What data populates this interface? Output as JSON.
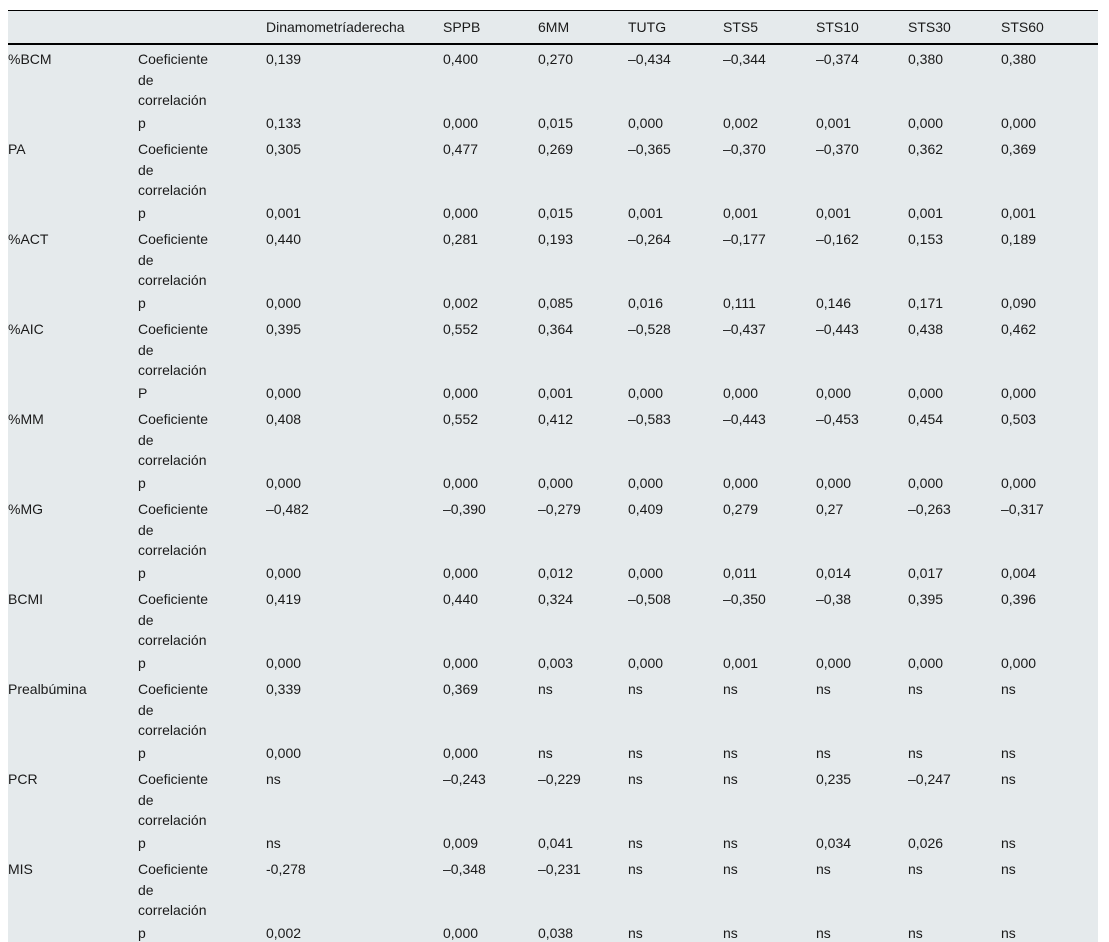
{
  "table": {
    "coef_label": "Coeficiente\nde\ncorrelación",
    "columns": [
      "",
      "",
      "Dinamometríaderecha",
      "SPPB",
      "6MM",
      "TUTG",
      "STS5",
      "STS10",
      "STS30",
      "STS60"
    ],
    "rows": [
      {
        "label": "%BCM",
        "coef": [
          "0,139",
          "0,400",
          "0,270",
          "–0,434",
          "–0,344",
          "–0,374",
          "0,380",
          "0,380"
        ],
        "p_label": "p",
        "p": [
          "0,133",
          "0,000",
          "0,015",
          "0,000",
          "0,002",
          "0,001",
          "0,000",
          "0,000"
        ]
      },
      {
        "label": "PA",
        "coef": [
          "0,305",
          "0,477",
          "0,269",
          "–0,365",
          "–0,370",
          "–0,370",
          "0,362",
          "0,369"
        ],
        "p_label": "p",
        "p": [
          "0,001",
          "0,000",
          "0,015",
          "0,001",
          "0,001",
          "0,001",
          "0,001",
          "0,001"
        ]
      },
      {
        "label": "%ACT",
        "coef": [
          "0,440",
          "0,281",
          "0,193",
          "–0,264",
          "–0,177",
          "–0,162",
          "0,153",
          "0,189"
        ],
        "p_label": "p",
        "p": [
          "0,000",
          "0,002",
          "0,085",
          "0,016",
          "0,111",
          "0,146",
          "0,171",
          "0,090"
        ]
      },
      {
        "label": "%AIC",
        "coef": [
          "0,395",
          "0,552",
          "0,364",
          "–0,528",
          "–0,437",
          "–0,443",
          "0,438",
          "0,462"
        ],
        "p_label": "P",
        "p": [
          "0,000",
          "0,000",
          "0,001",
          "0,000",
          "0,000",
          "0,000",
          "0,000",
          "0,000"
        ]
      },
      {
        "label": "%MM",
        "coef": [
          "0,408",
          "0,552",
          "0,412",
          "–0,583",
          "–0,443",
          "–0,453",
          "0,454",
          "0,503"
        ],
        "p_label": "p",
        "p": [
          "0,000",
          "0,000",
          "0,000",
          "0,000",
          "0,000",
          "0,000",
          "0,000",
          "0,000"
        ]
      },
      {
        "label": "%MG",
        "coef": [
          "–0,482",
          "–0,390",
          "–0,279",
          "0,409",
          "0,279",
          "0,27",
          "–0,263",
          "–0,317"
        ],
        "p_label": "p",
        "p": [
          "0,000",
          "0,000",
          "0,012",
          "0,000",
          "0,011",
          "0,014",
          "0,017",
          "0,004"
        ]
      },
      {
        "label": "BCMI",
        "coef": [
          "0,419",
          "0,440",
          "0,324",
          "–0,508",
          "–0,350",
          "–0,38",
          "0,395",
          "0,396"
        ],
        "p_label": "p",
        "p": [
          "0,000",
          "0,000",
          "0,003",
          "0,000",
          "0,001",
          "0,000",
          "0,000",
          "0,000"
        ]
      },
      {
        "label": "Prealbúmina",
        "coef": [
          "0,339",
          "0,369",
          "ns",
          "ns",
          "ns",
          "ns",
          "ns",
          "ns"
        ],
        "p_label": "p",
        "p": [
          "0,000",
          "0,000",
          "ns",
          "ns",
          "ns",
          "ns",
          "ns",
          "ns"
        ]
      },
      {
        "label": "PCR",
        "coef": [
          "ns",
          "–0,243",
          "–0,229",
          "ns",
          "ns",
          "0,235",
          "–0,247",
          "ns"
        ],
        "p_label": "p",
        "p": [
          "ns",
          "0,009",
          "0,041",
          "ns",
          "ns",
          "0,034",
          "0,026",
          "ns"
        ]
      },
      {
        "label": "MIS",
        "coef": [
          "-0,278",
          "–0,348",
          "–0,231",
          "ns",
          "ns",
          "ns",
          "ns",
          "ns"
        ],
        "p_label": "p",
        "p": [
          "0,002",
          "0,000",
          "0,038",
          "ns",
          "ns",
          "ns",
          "ns",
          "ns"
        ]
      }
    ]
  }
}
